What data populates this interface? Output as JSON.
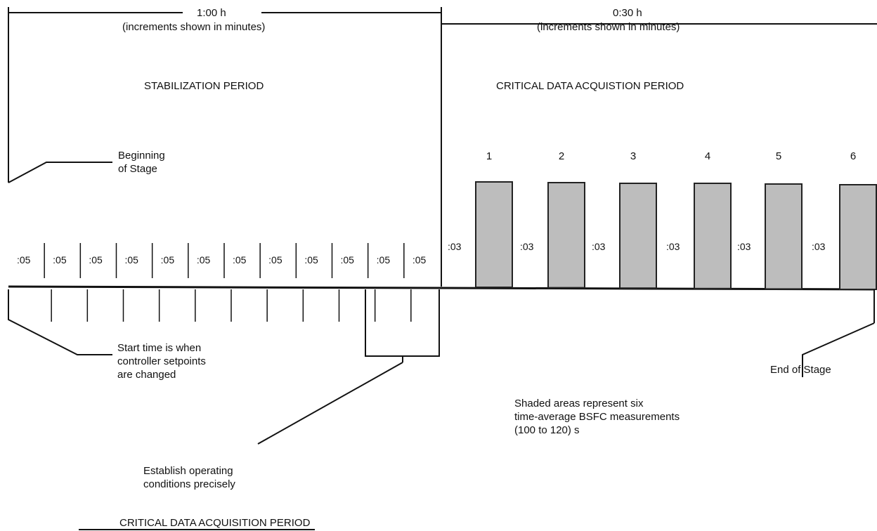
{
  "header": {
    "left_duration": "1:00 h",
    "left_note": "(increments shown in minutes)",
    "right_duration": "0:30 h",
    "right_note": "(increments shown in minutes)"
  },
  "periods": {
    "stabilization": "STABILIZATION PERIOD",
    "critical": "CRITICAL DATA ACQUISTION PERIOD"
  },
  "stabilization_segments": [
    ":05",
    ":05",
    ":05",
    ":05",
    ":05",
    ":05",
    ":05",
    ":05",
    ":05",
    ":05",
    ":05",
    ":05"
  ],
  "measurements": [
    {
      "number": "1",
      "gap": ":03"
    },
    {
      "number": "2",
      "gap": ":03"
    },
    {
      "number": "3",
      "gap": ":03"
    },
    {
      "number": "4",
      "gap": ":03"
    },
    {
      "number": "5",
      "gap": ":03"
    },
    {
      "number": "6",
      "gap": ":03"
    }
  ],
  "annotations": {
    "beginning": "Beginning\nof Stage",
    "start_time": "Start time is when\ncontroller setpoints\nare changed",
    "end": "End of Stage",
    "shaded": "Shaded areas represent six\ntime-average BSFC measurements\n(100 to 120) s",
    "establish": "Establish operating\nconditions precisely"
  },
  "footer": {
    "caption": "CRITICAL DATA ACQUISITION PERIOD"
  },
  "colors": {
    "line": "#111111",
    "bar_fill": "#bdbdbd",
    "bar_stroke": "#222222"
  }
}
